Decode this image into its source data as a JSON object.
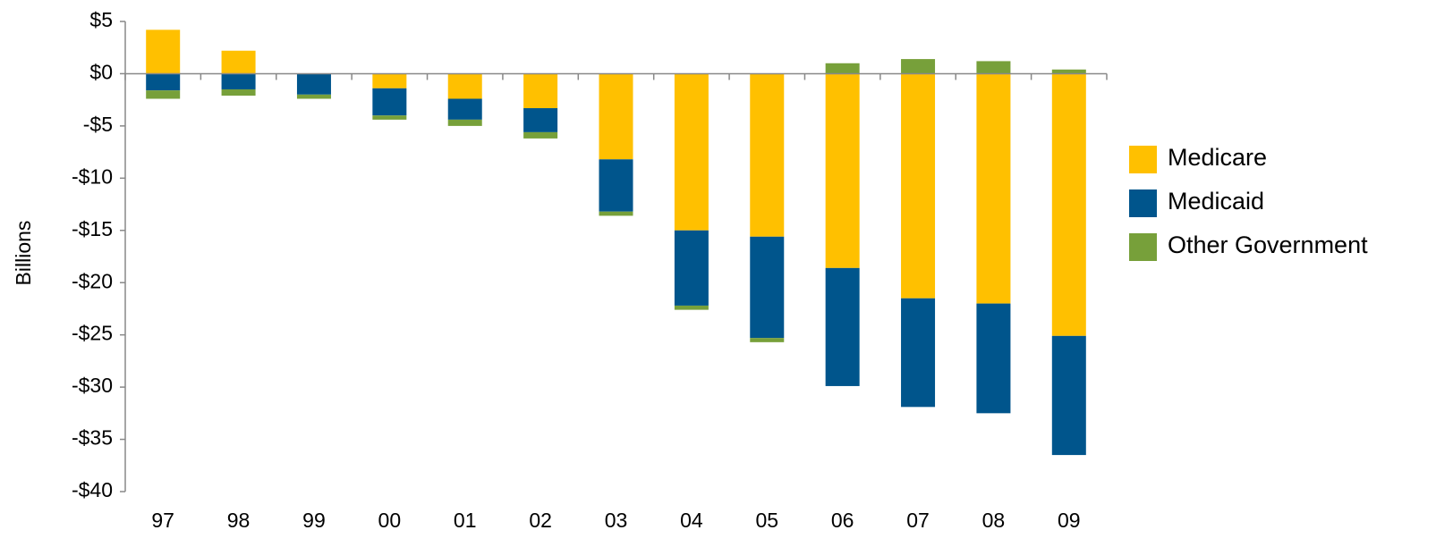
{
  "chart_data": {
    "type": "stacked_bar",
    "y_label": "Billions",
    "categories": [
      "97",
      "98",
      "99",
      "00",
      "01",
      "02",
      "03",
      "04",
      "05",
      "06",
      "07",
      "08",
      "09"
    ],
    "series": [
      {
        "name": "Medicare",
        "color": "#FFC000",
        "values": [
          4.2,
          2.2,
          0,
          -1.4,
          -2.4,
          -3.3,
          -8.2,
          -15.0,
          -15.6,
          -18.6,
          -21.5,
          -22.0,
          -25.1
        ]
      },
      {
        "name": "Medicaid",
        "color": "#00558C",
        "values": [
          -1.6,
          -1.5,
          -2.0,
          -2.6,
          -2.0,
          -2.3,
          -5.0,
          -7.2,
          -9.7,
          -11.3,
          -10.4,
          -10.5,
          -11.4
        ]
      },
      {
        "name": "Other Government",
        "color": "#77A03A",
        "values": [
          -0.8,
          -0.6,
          -0.4,
          -0.4,
          -0.6,
          -0.6,
          -0.4,
          -0.4,
          -0.4,
          1.0,
          1.4,
          1.2,
          0.4
        ]
      }
    ],
    "ylim": [
      -40,
      5
    ],
    "yticks": [
      {
        "value": 5,
        "label": "$5"
      },
      {
        "value": 0,
        "label": "$0"
      },
      {
        "value": -5,
        "label": "-$5"
      },
      {
        "value": -10,
        "label": "-$10"
      },
      {
        "value": -15,
        "label": "-$15"
      },
      {
        "value": -20,
        "label": "-$20"
      },
      {
        "value": -25,
        "label": "-$25"
      },
      {
        "value": -30,
        "label": "-$30"
      },
      {
        "value": -35,
        "label": "-$35"
      },
      {
        "value": -40,
        "label": "-$40"
      }
    ],
    "grid": false,
    "legend": "right"
  }
}
